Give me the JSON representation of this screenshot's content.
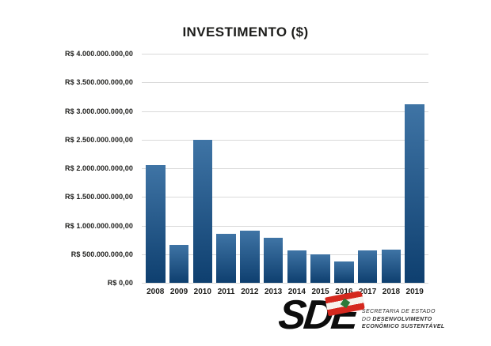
{
  "chart_data": {
    "type": "bar",
    "title": "INVESTIMENTO ($)",
    "xlabel": "",
    "ylabel": "",
    "categories": [
      "2008",
      "2009",
      "2010",
      "2011",
      "2012",
      "2013",
      "2014",
      "2015",
      "2016",
      "2017",
      "2018",
      "2019"
    ],
    "values": [
      2060000000,
      660000000,
      2500000000,
      855000000,
      910000000,
      790000000,
      560000000,
      495000000,
      370000000,
      565000000,
      575000000,
      3120000000
    ],
    "ylim": [
      0,
      4000000000
    ],
    "y_ticks": [
      "R$ 4.000.000.000,00",
      "R$ 3.500.000.000,00",
      "R$ 3.000.000.000,00",
      "R$ 2.500.000.000,00",
      "R$ 2.000.000.000,00",
      "R$ 1.500.000.000,00",
      "R$ 1.000.000.000,00",
      "R$ 500.000.000,00",
      "R$ 0,00"
    ],
    "grid": true,
    "legend": "none",
    "bar_color_top": "#3f74a5",
    "bar_color_bottom": "#0e3f6f"
  },
  "colors": {
    "background": "#ffffff",
    "text": "#1d1d1b",
    "gridline": "#d9d9d9"
  },
  "footer": {
    "logo_text": "SDE",
    "org_line1": "SECRETARIA DE ESTADO",
    "org_line2_prefix": "DO ",
    "org_line2_bold": "DESENVOLVIMENTO",
    "org_line3": "ECONÔMICO SUSTENTÁVEL",
    "flag_colors": {
      "red": "#d5281e",
      "white": "#f7f2ec",
      "green": "#2d7a3a"
    }
  }
}
